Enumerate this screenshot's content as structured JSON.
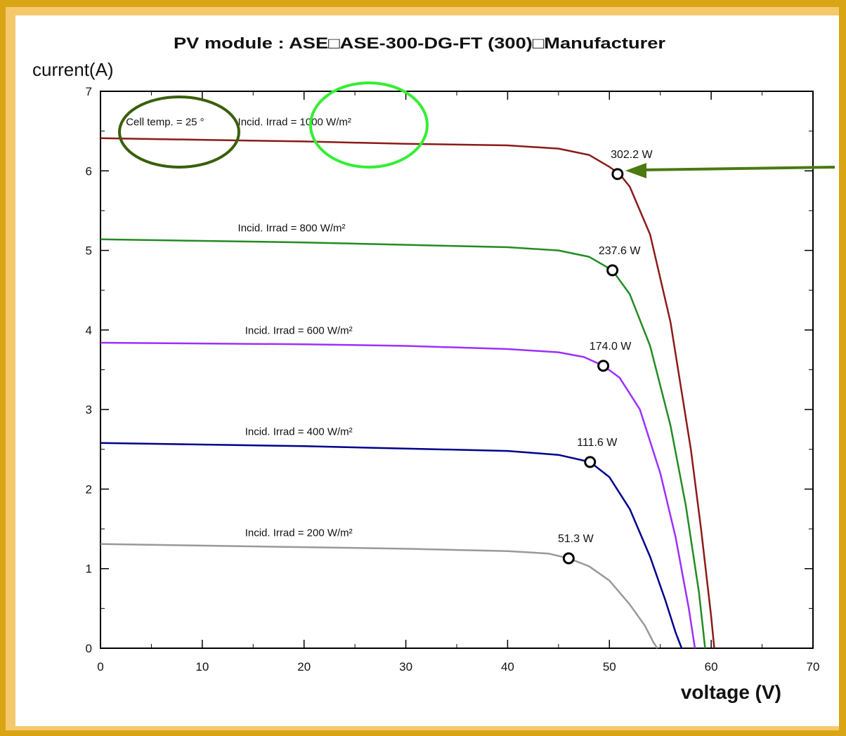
{
  "chart_data": {
    "type": "line",
    "title": "PV module :  ASE□ASE-300-DG-FT (300)□Manufacturer",
    "xlabel": "voltage (V)",
    "ylabel": "current(A)",
    "xlim": [
      0,
      70
    ],
    "ylim": [
      0,
      7
    ],
    "x_ticks": [
      0,
      10,
      20,
      30,
      40,
      50,
      60,
      70
    ],
    "y_ticks": [
      0,
      1,
      2,
      3,
      4,
      5,
      6,
      7
    ],
    "grid": false,
    "annotations": {
      "cell_temp": "Cell temp. = 25 °"
    },
    "series": [
      {
        "name": "Incid. Irrad = 1000 W/m²",
        "color": "#8B1A1A",
        "x": [
          0,
          10,
          20,
          30,
          40,
          45,
          48,
          50,
          51,
          52,
          54,
          56,
          58,
          59,
          60,
          60.3
        ],
        "y": [
          6.41,
          6.39,
          6.37,
          6.34,
          6.32,
          6.28,
          6.2,
          6.05,
          5.96,
          5.8,
          5.2,
          4.1,
          2.5,
          1.5,
          0.4,
          0
        ]
      },
      {
        "name": "Incid. Irrad = 800 W/m²",
        "color": "#228B22",
        "x": [
          0,
          10,
          20,
          30,
          40,
          45,
          48,
          50.3,
          52,
          54,
          56,
          57.5,
          58.8,
          59.4
        ],
        "y": [
          5.14,
          5.12,
          5.1,
          5.07,
          5.04,
          5.0,
          4.92,
          4.75,
          4.45,
          3.8,
          2.8,
          1.8,
          0.7,
          0
        ]
      },
      {
        "name": "Incid. Irrad = 600 W/m²",
        "color": "#9B30FF",
        "x": [
          0,
          10,
          20,
          30,
          40,
          45,
          47.5,
          49.4,
          51,
          53,
          55,
          56.5,
          57.8,
          58.4
        ],
        "y": [
          3.84,
          3.83,
          3.82,
          3.8,
          3.76,
          3.72,
          3.66,
          3.55,
          3.4,
          3.0,
          2.2,
          1.4,
          0.5,
          0
        ]
      },
      {
        "name": "Incid. Irrad = 400 W/m²",
        "color": "#00008B",
        "x": [
          0,
          10,
          20,
          30,
          40,
          45,
          48.1,
          50,
          52,
          54,
          55.5,
          56.5,
          57.1
        ],
        "y": [
          2.58,
          2.56,
          2.54,
          2.51,
          2.48,
          2.43,
          2.34,
          2.15,
          1.75,
          1.15,
          0.6,
          0.2,
          0
        ]
      },
      {
        "name": "Incid. Irrad = 200 W/m²",
        "color": "#999999",
        "x": [
          0,
          10,
          20,
          30,
          40,
          44,
          46,
          48,
          50,
          52,
          53.5,
          54.3,
          54.7
        ],
        "y": [
          1.31,
          1.29,
          1.27,
          1.25,
          1.22,
          1.19,
          1.13,
          1.03,
          0.85,
          0.55,
          0.28,
          0.08,
          0
        ]
      }
    ],
    "mpp_points": [
      {
        "label": "302.2 W",
        "x": 50.8,
        "y": 5.96
      },
      {
        "label": "237.6 W",
        "x": 50.3,
        "y": 4.75
      },
      {
        "label": "174.0 W",
        "x": 49.4,
        "y": 3.55
      },
      {
        "label": "111.6 W",
        "x": 48.1,
        "y": 2.34
      },
      {
        "label": "51.3 W",
        "x": 46.0,
        "y": 1.13
      }
    ],
    "highlights": {
      "circle_colors": [
        "#3A5F0B",
        "#33EE33"
      ],
      "arrow_color": "#4A7A10"
    }
  }
}
